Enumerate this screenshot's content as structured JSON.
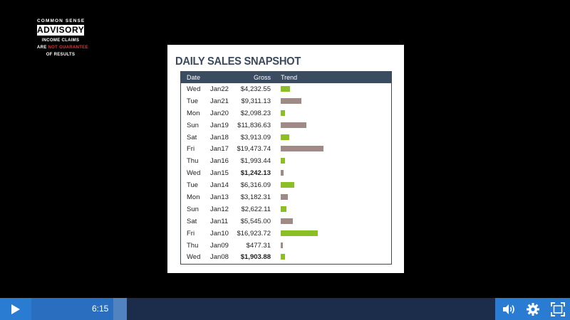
{
  "logo": {
    "top": "COMMON SENSE",
    "main": "ADVISORY",
    "line1": "INCOME CLAIMS",
    "line2_prefix": "ARE ",
    "line2_red": "NOT GUARANTEE",
    "line3": "OF RESULTS"
  },
  "slide": {
    "title": "DAILY SALES SNAPSHOT",
    "headers": {
      "date": "Date",
      "gross": "Gross",
      "trend": "Trend"
    },
    "rows": [
      {
        "day": "Wed",
        "date": "Jan22",
        "gross": "$4,232.55",
        "bold": false,
        "color": "#8cbf26"
      },
      {
        "day": "Tue",
        "date": "Jan21",
        "gross": "$9,311.13",
        "bold": false,
        "color": "#a08a86"
      },
      {
        "day": "Mon",
        "date": "Jan20",
        "gross": "$2,098.23",
        "bold": false,
        "color": "#8cbf26"
      },
      {
        "day": "Sun",
        "date": "Jan19",
        "gross": "$11,836.63",
        "bold": false,
        "color": "#a08a86"
      },
      {
        "day": "Sat",
        "date": "Jan18",
        "gross": "$3,913.09",
        "bold": false,
        "color": "#8cbf26"
      },
      {
        "day": "Fri",
        "date": "Jan17",
        "gross": "$19,473.74",
        "bold": false,
        "color": "#a08a86"
      },
      {
        "day": "Thu",
        "date": "Jan16",
        "gross": "$1,993.44",
        "bold": false,
        "color": "#8cbf26"
      },
      {
        "day": "Wed",
        "date": "Jan15",
        "gross": "$1,242.13",
        "bold": true,
        "color": "#a08a86"
      },
      {
        "day": "Tue",
        "date": "Jan14",
        "gross": "$6,316.09",
        "bold": false,
        "color": "#8cbf26"
      },
      {
        "day": "Mon",
        "date": "Jan13",
        "gross": "$3,182.31",
        "bold": false,
        "color": "#a08a86"
      },
      {
        "day": "Sun",
        "date": "Jan12",
        "gross": "$2,622.11",
        "bold": false,
        "color": "#8cbf26"
      },
      {
        "day": "Sat",
        "date": "Jan11",
        "gross": "$5,545.00",
        "bold": false,
        "color": "#a08a86"
      },
      {
        "day": "Fri",
        "date": "Jan10",
        "gross": "$16,923.72",
        "bold": false,
        "color": "#8cbf26"
      },
      {
        "day": "Thu",
        "date": "Jan09",
        "gross": "$477.31",
        "bold": false,
        "color": "#a08a86"
      },
      {
        "day": "Wed",
        "date": "Jan08",
        "gross": "$1,903.88",
        "bold": true,
        "color": "#8cbf26"
      }
    ]
  },
  "player": {
    "time": "6:15",
    "progress_fraction": 0.2,
    "icons": [
      "play-icon",
      "volume-icon",
      "gear-icon",
      "fullscreen-icon"
    ]
  }
}
